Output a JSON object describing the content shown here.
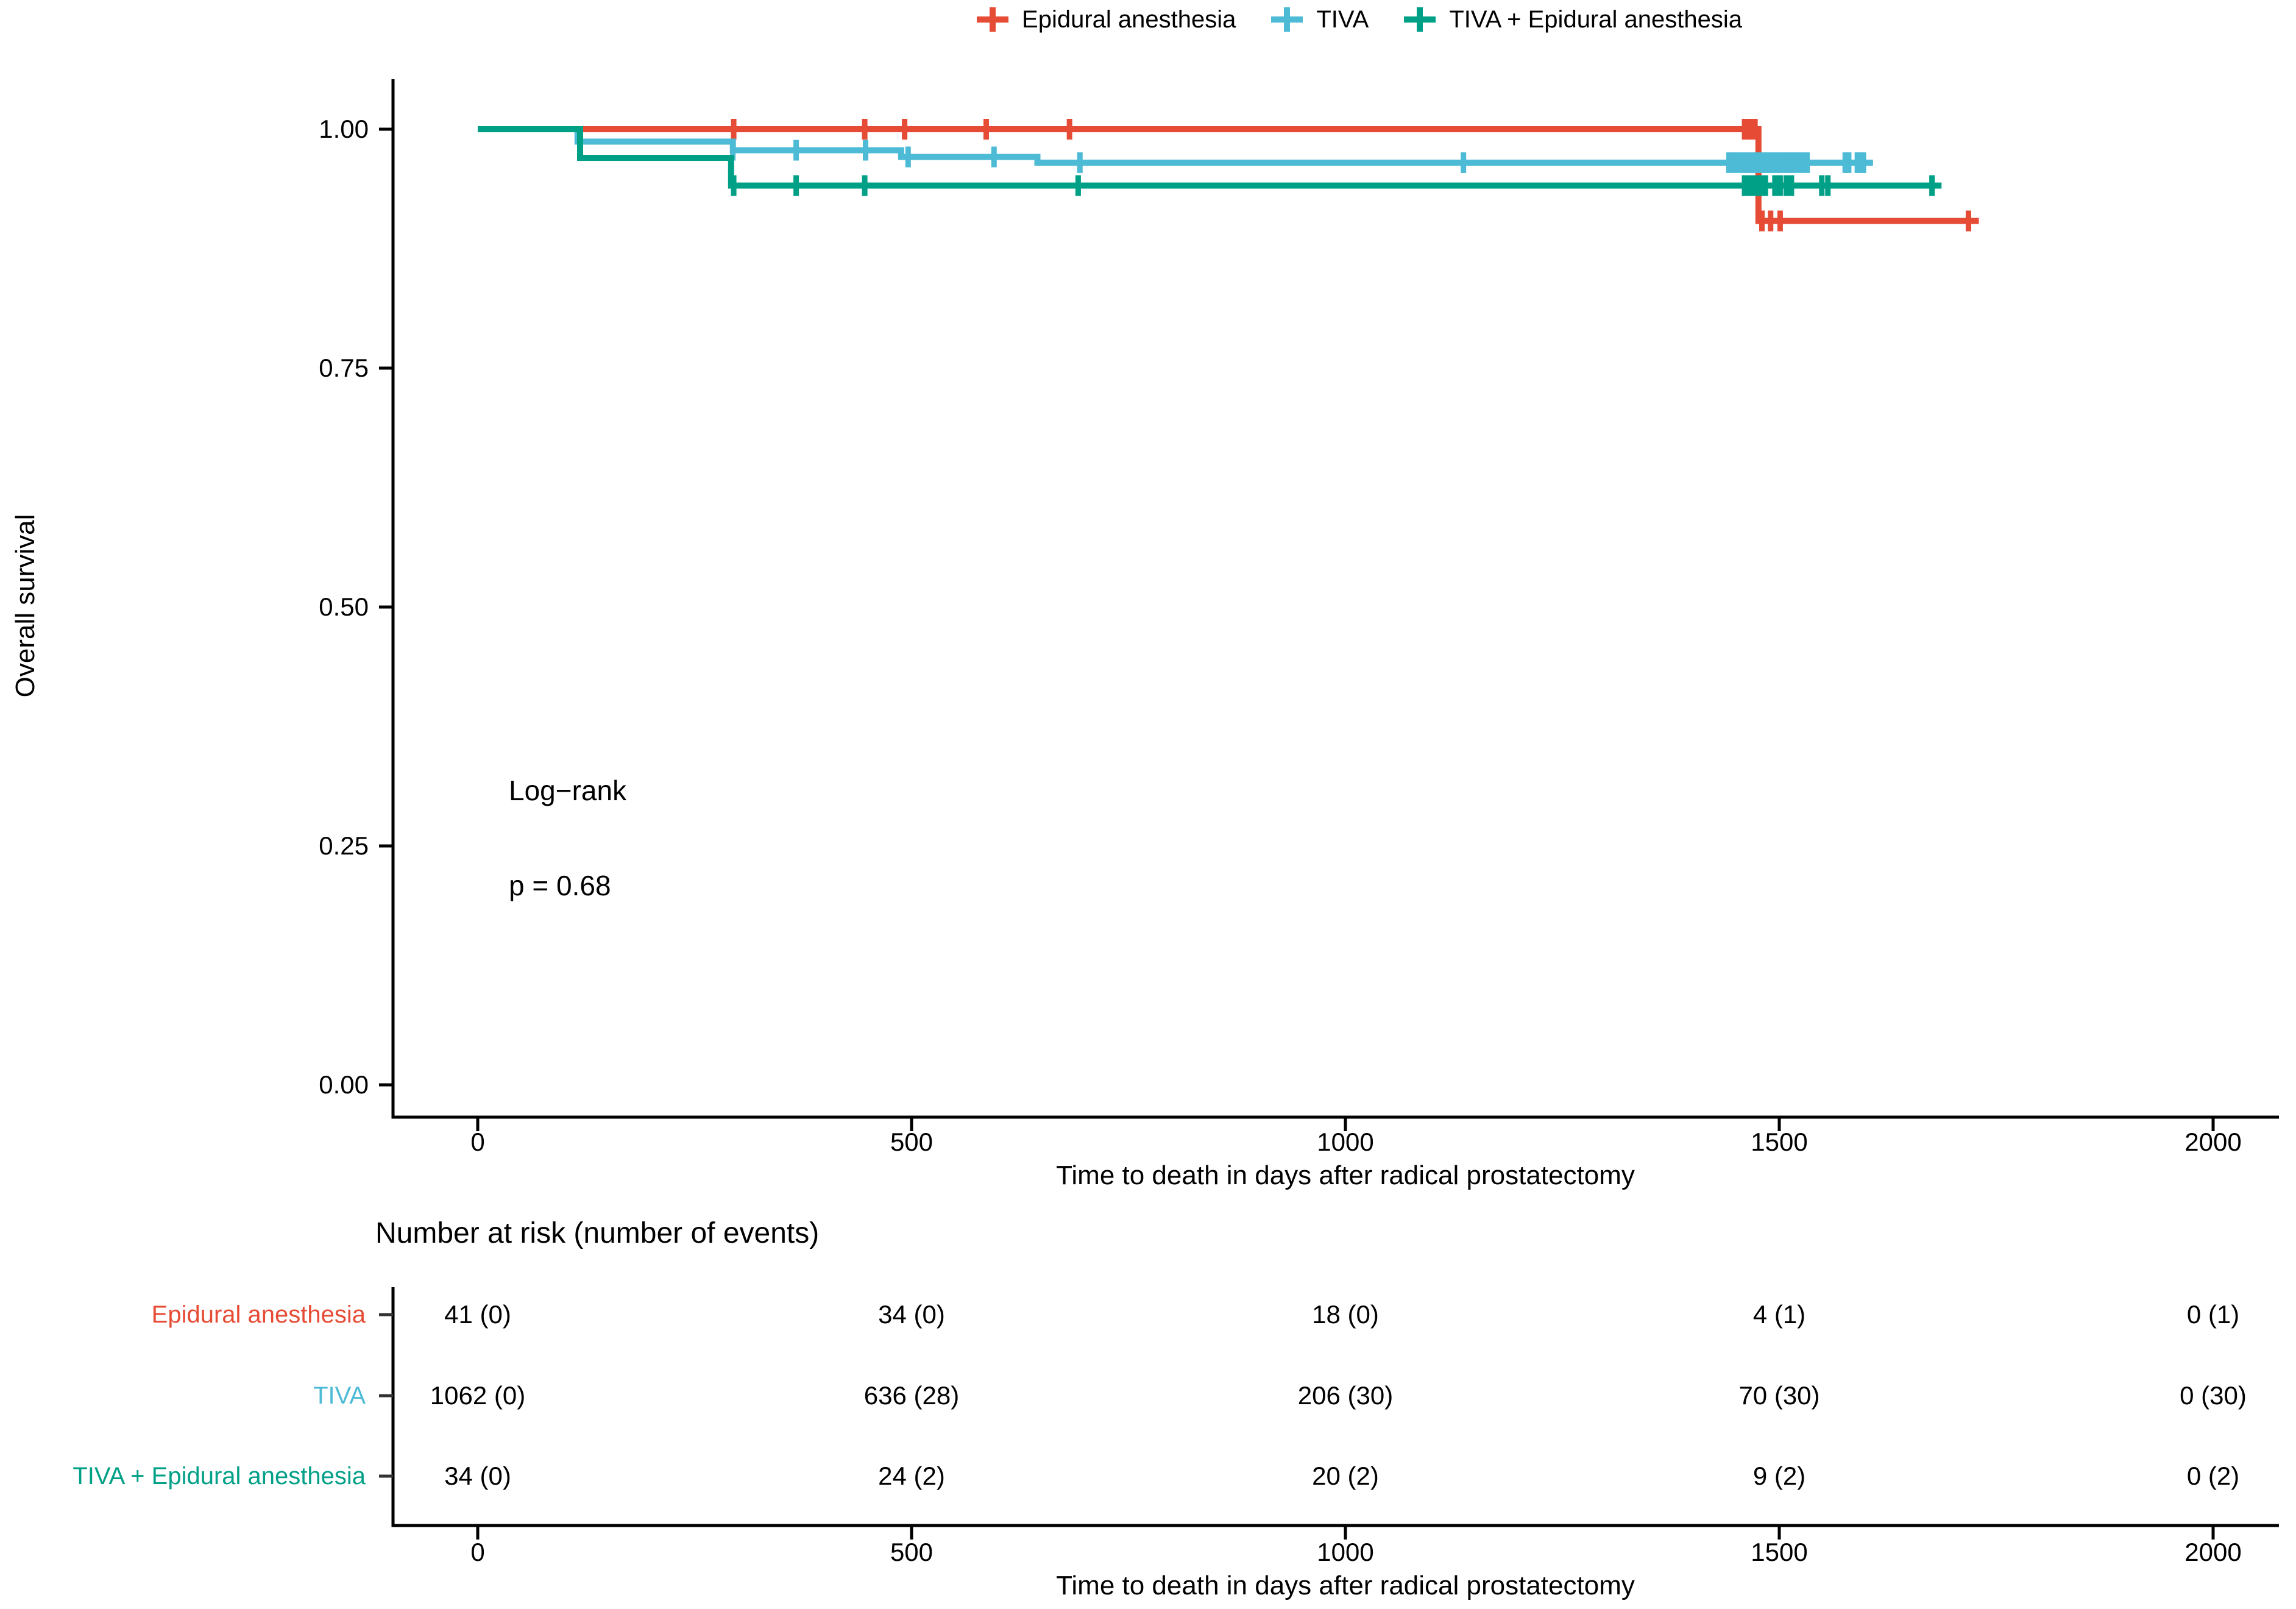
{
  "figure": {
    "background": "#FFFFFF",
    "text_color": "#000000"
  },
  "chart_data": {
    "type": "line",
    "subtype": "kaplan_meier_step",
    "title": "",
    "x_label": "Time to death in days after radical prostatectomy",
    "y_label": "Overall survival",
    "xlim": [
      0,
      2000
    ],
    "ylim": [
      0.0,
      1.0
    ],
    "x_ticks": [
      0,
      500,
      1000,
      1500,
      2000
    ],
    "y_ticks": [
      {
        "value": 1.0,
        "label": "1.00"
      },
      {
        "value": 0.75,
        "label": "0.75"
      },
      {
        "value": 0.5,
        "label": "0.50"
      },
      {
        "value": 0.25,
        "label": "0.25"
      },
      {
        "value": 0.0,
        "label": "0.00"
      }
    ],
    "grid": false,
    "legend_position": "top",
    "annotations": [
      {
        "text": "Log−rank",
        "x": 70,
        "y": 0.31
      },
      {
        "text": "p = 0.68",
        "x": 70,
        "y": 0.21
      }
    ],
    "series": [
      {
        "name": "Epidural anesthesia",
        "color": "#E64B35",
        "steps": [
          [
            0,
            1.0
          ],
          [
            1476,
            1.0
          ],
          [
            1476,
            0.904
          ],
          [
            1730,
            0.904
          ]
        ],
        "censors": [
          [
            295,
            1.0
          ],
          [
            446,
            1.0
          ],
          [
            492,
            1.0
          ],
          [
            586,
            1.0
          ],
          [
            682,
            1.0
          ],
          [
            1460,
            1.0
          ],
          [
            1466,
            1.0
          ],
          [
            1472,
            1.0
          ],
          [
            1480,
            0.904
          ],
          [
            1490,
            0.904
          ],
          [
            1501,
            0.904
          ],
          [
            1718,
            0.904
          ]
        ]
      },
      {
        "name": "TIVA",
        "color": "#4DBBD5",
        "steps": [
          [
            0,
            1.0
          ],
          [
            115,
            1.0
          ],
          [
            115,
            0.987
          ],
          [
            294,
            0.987
          ],
          [
            294,
            0.978
          ],
          [
            488,
            0.978
          ],
          [
            488,
            0.971
          ],
          [
            645,
            0.971
          ],
          [
            645,
            0.965
          ],
          [
            1608,
            0.965
          ]
        ],
        "censors": [
          [
            294,
            0.978
          ],
          [
            367,
            0.978
          ],
          [
            447,
            0.978
          ],
          [
            496,
            0.971
          ],
          [
            595,
            0.971
          ],
          [
            694,
            0.965
          ],
          [
            1136,
            0.965
          ],
          [
            1442,
            0.965
          ],
          [
            1448,
            0.965
          ],
          [
            1454,
            0.965
          ],
          [
            1460,
            0.965
          ],
          [
            1466,
            0.965
          ],
          [
            1472,
            0.965
          ],
          [
            1478,
            0.965
          ],
          [
            1484,
            0.965
          ],
          [
            1490,
            0.965
          ],
          [
            1496,
            0.965
          ],
          [
            1502,
            0.965
          ],
          [
            1508,
            0.965
          ],
          [
            1514,
            0.965
          ],
          [
            1520,
            0.965
          ],
          [
            1526,
            0.965
          ],
          [
            1532,
            0.965
          ],
          [
            1576,
            0.965
          ],
          [
            1580,
            0.965
          ],
          [
            1590,
            0.965
          ],
          [
            1593,
            0.965
          ],
          [
            1597,
            0.965
          ]
        ]
      },
      {
        "name": "TIVA + Epidural anesthesia",
        "color": "#00A087",
        "steps": [
          [
            0,
            1.0
          ],
          [
            118,
            1.0
          ],
          [
            118,
            0.97
          ],
          [
            292,
            0.97
          ],
          [
            292,
            0.941
          ],
          [
            1687,
            0.941
          ]
        ],
        "censors": [
          [
            295,
            0.941
          ],
          [
            367,
            0.941
          ],
          [
            446,
            0.941
          ],
          [
            692,
            0.941
          ],
          [
            1460,
            0.941
          ],
          [
            1466,
            0.941
          ],
          [
            1472,
            0.941
          ],
          [
            1478,
            0.941
          ],
          [
            1484,
            0.941
          ],
          [
            1495,
            0.941
          ],
          [
            1501,
            0.941
          ],
          [
            1508,
            0.941
          ],
          [
            1514,
            0.941
          ],
          [
            1549,
            0.941
          ],
          [
            1556,
            0.941
          ],
          [
            1676,
            0.941
          ]
        ]
      }
    ],
    "risk_table": {
      "title": "Number at risk (number of events)",
      "times": [
        0,
        500,
        1000,
        1500,
        2000
      ],
      "x_label": "Time to death in days after radical prostatectomy",
      "rows": [
        {
          "label": "Epidural anesthesia",
          "color": "#E64B35",
          "values": [
            "41 (0)",
            "34 (0)",
            "18 (0)",
            "4 (1)",
            "0 (1)"
          ]
        },
        {
          "label": "TIVA",
          "color": "#4DBBD5",
          "values": [
            "1062 (0)",
            "636 (28)",
            "206 (30)",
            "70 (30)",
            "0 (30)"
          ]
        },
        {
          "label": "TIVA + Epidural anesthesia",
          "color": "#00A087",
          "values": [
            "34 (0)",
            "24 (2)",
            "20 (2)",
            "9 (2)",
            "0 (2)"
          ]
        }
      ]
    }
  }
}
